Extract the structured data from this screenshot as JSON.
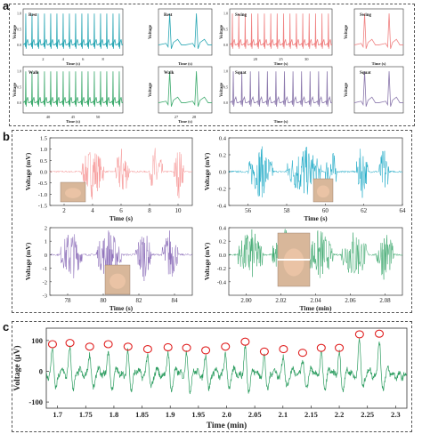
{
  "panel_labels": {
    "a": "a",
    "b": "b",
    "c": "c"
  },
  "colors": {
    "rest": "#2aa7b4",
    "swing": "#f08383",
    "walk": "#3daa6d",
    "squat": "#8c79ad",
    "fist": "#f79b9b",
    "thumb": "#1ba9c6",
    "palm": "#8a6bb8",
    "flip": "#3aa76c",
    "panel_c": "#2f9e62",
    "marker": "#e02020"
  },
  "icons": [
    "hand-fist-photo-icon",
    "thumb-up-photo-icon",
    "open-palm-photo-icon",
    "palm-flip-photo-icon"
  ],
  "chart_data": [
    {
      "id": "a-rest-long",
      "type": "line",
      "title": "Rest",
      "xlabel": "Time (s)",
      "ylabel": "Voltage",
      "xlim": [
        0,
        10
      ],
      "ylim": [
        -0.2,
        1.2
      ],
      "xticks": [
        "2",
        "4",
        "6",
        "8"
      ],
      "yticks": [
        "0.0",
        "0.5",
        "1.0"
      ],
      "beats": 16
    },
    {
      "id": "a-rest-zoom",
      "type": "line",
      "title": "Rest",
      "xlabel": "Time (s)",
      "ylabel": "Voltage",
      "xlim": [
        0,
        2
      ],
      "ylim": [
        -0.2,
        1.2
      ],
      "xticks": [],
      "yticks": [],
      "beats": 2
    },
    {
      "id": "a-swing-long",
      "type": "line",
      "title": "Swing",
      "xlabel": "Time (s)",
      "ylabel": "Voltage",
      "xlim": [
        0,
        10
      ],
      "ylim": [
        -0.2,
        1.2
      ],
      "xticks": [
        "20",
        "25",
        "30"
      ],
      "yticks": [
        "0.0",
        "0.5",
        "1.0"
      ],
      "beats": 16
    },
    {
      "id": "a-swing-zoom",
      "type": "line",
      "title": "Swing",
      "xlabel": "Time (s)",
      "ylabel": "Voltage",
      "xlim": [
        0,
        2
      ],
      "ylim": [
        -0.2,
        1.2
      ],
      "xticks": [],
      "yticks": [],
      "beats": 2
    },
    {
      "id": "a-walk-long",
      "type": "line",
      "title": "Walk",
      "xlabel": "Time (s)",
      "ylabel": "Voltage",
      "xlim": [
        0,
        10
      ],
      "ylim": [
        -0.2,
        1.2
      ],
      "xticks": [
        "40",
        "45",
        "50"
      ],
      "yticks": [
        "0.0",
        "0.5",
        "1.0"
      ],
      "beats": 16
    },
    {
      "id": "a-walk-zoom",
      "type": "line",
      "title": "Walk",
      "xlabel": "Time (s)",
      "ylabel": "Voltage",
      "xlim": [
        0,
        2
      ],
      "ylim": [
        -0.2,
        1.2
      ],
      "xticks": [
        "27",
        "28"
      ],
      "yticks": [],
      "beats": 2
    },
    {
      "id": "a-squat-long",
      "type": "line",
      "title": "Squat",
      "xlabel": "Time (s)",
      "ylabel": "Voltage",
      "xlim": [
        0,
        10
      ],
      "ylim": [
        -0.2,
        1.2
      ],
      "xticks": [],
      "yticks": [
        "0.0",
        "0.5",
        "1.0"
      ],
      "beats": 12
    },
    {
      "id": "a-squat-zoom",
      "type": "line",
      "title": "Squat",
      "xlabel": "",
      "ylabel": "Voltage",
      "xlim": [
        0,
        2
      ],
      "ylim": [
        -0.2,
        1.2
      ],
      "xticks": [],
      "yticks": [],
      "beats": 2
    },
    {
      "id": "b-fist",
      "type": "line",
      "xlabel": "Time (s)",
      "ylabel": "Voltage (mV)",
      "xlim": [
        1,
        11
      ],
      "ylim": [
        -1.5,
        1.5
      ],
      "xticks": [
        2,
        4,
        6,
        8,
        10
      ],
      "yticks": [
        -1.5,
        -1.0,
        -0.5,
        0.0,
        0.5,
        1.0,
        1.5
      ],
      "bursts": [
        [
          3.2,
          4.8
        ],
        [
          5.6,
          6.6
        ],
        [
          8.0,
          8.9
        ],
        [
          9.7,
          10.4
        ]
      ]
    },
    {
      "id": "b-thumb",
      "type": "line",
      "xlabel": "Time (s)",
      "ylabel": "Voltage (mV)",
      "xlim": [
        55,
        64
      ],
      "ylim": [
        -0.4,
        0.4
      ],
      "xticks": [
        56,
        58,
        60,
        62,
        64
      ],
      "yticks": [
        -0.4,
        -0.2,
        0.0,
        0.2,
        0.4
      ],
      "bursts": [
        [
          56.0,
          57.3
        ],
        [
          58.0,
          59.8
        ],
        [
          60.0,
          60.6
        ],
        [
          61.6,
          62.2
        ],
        [
          62.8,
          63.3
        ]
      ]
    },
    {
      "id": "b-palm",
      "type": "line",
      "xlabel": "Time (s)",
      "ylabel": "Voltage (mV)",
      "xlim": [
        77,
        85
      ],
      "ylim": [
        -3,
        2
      ],
      "xticks": [
        78,
        80,
        82,
        84
      ],
      "yticks": [
        -3,
        -2,
        -1,
        0,
        1,
        2
      ],
      "bursts": [
        [
          77.6,
          78.8
        ],
        [
          79.6,
          81.0
        ],
        [
          81.8,
          82.7
        ],
        [
          83.3,
          84.2
        ]
      ]
    },
    {
      "id": "b-flip",
      "type": "line",
      "xlabel": "Time (min)",
      "ylabel": "Voltage (mV)",
      "xlim": [
        1.99,
        2.09
      ],
      "ylim": [
        -0.6,
        0.4
      ],
      "xticks": [
        2.0,
        2.02,
        2.04,
        2.06,
        2.08
      ],
      "yticks": [
        -0.4,
        -0.2,
        0.0,
        0.2,
        0.4
      ],
      "bursts": [
        [
          1.995,
          2.01
        ],
        [
          2.015,
          2.03
        ],
        [
          2.035,
          2.05
        ],
        [
          2.055,
          2.07
        ],
        [
          2.075,
          2.085
        ]
      ]
    },
    {
      "id": "c-pulse",
      "type": "line",
      "xlabel": "Time (min)",
      "ylabel": "Voltage (μV)",
      "xlim": [
        1.68,
        2.32
      ],
      "ylim": [
        -120,
        140
      ],
      "xticks": [
        1.7,
        1.75,
        1.8,
        1.85,
        1.9,
        1.95,
        2.0,
        2.05,
        2.1,
        2.15,
        2.2,
        2.25,
        2.3
      ],
      "yticks": [
        -100,
        0,
        100
      ],
      "peaks": [
        {
          "x": 1.691,
          "y": 88
        },
        {
          "x": 1.722,
          "y": 92
        },
        {
          "x": 1.757,
          "y": 80
        },
        {
          "x": 1.79,
          "y": 88
        },
        {
          "x": 1.825,
          "y": 80
        },
        {
          "x": 1.86,
          "y": 72
        },
        {
          "x": 1.896,
          "y": 78
        },
        {
          "x": 1.929,
          "y": 76
        },
        {
          "x": 1.963,
          "y": 68
        },
        {
          "x": 1.998,
          "y": 80
        },
        {
          "x": 2.033,
          "y": 96
        },
        {
          "x": 2.067,
          "y": 64
        },
        {
          "x": 2.101,
          "y": 72
        },
        {
          "x": 2.135,
          "y": 60
        },
        {
          "x": 2.168,
          "y": 76
        },
        {
          "x": 2.2,
          "y": 76
        },
        {
          "x": 2.236,
          "y": 120
        },
        {
          "x": 2.271,
          "y": 122
        }
      ]
    }
  ]
}
